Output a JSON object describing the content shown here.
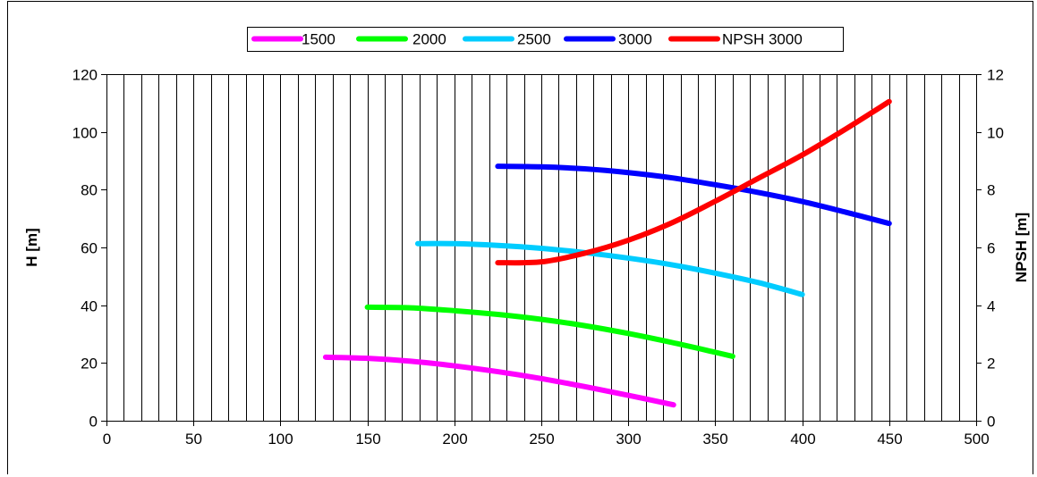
{
  "chart_data": {
    "type": "line",
    "title": "",
    "xlabel": "",
    "ylabel": "H [m]",
    "y2label": "NPSH [m]",
    "xlim": [
      0,
      500
    ],
    "ylim": [
      0,
      120
    ],
    "y2lim": [
      0,
      12
    ],
    "x_ticks": [
      0,
      50,
      100,
      150,
      200,
      250,
      300,
      350,
      400,
      450,
      500
    ],
    "y_ticks": [
      0,
      20,
      40,
      60,
      80,
      100,
      120
    ],
    "y2_ticks": [
      0,
      2,
      4,
      6,
      8,
      10,
      12
    ],
    "grid": "vertical lines every 10",
    "legend_position": "top",
    "series": [
      {
        "name": "1500",
        "axis": "left",
        "color": "#ff00ff",
        "x": [
          126,
          150,
          175,
          200,
          225,
          250,
          275,
          300,
          326
        ],
        "y": [
          22,
          21.6,
          20.6,
          19.0,
          17.0,
          14.6,
          11.8,
          8.8,
          5.5
        ]
      },
      {
        "name": "2000",
        "axis": "left",
        "color": "#00ff00",
        "x": [
          150,
          175,
          200,
          225,
          250,
          275,
          300,
          325,
          350,
          360
        ],
        "y": [
          39.3,
          39.1,
          38.1,
          36.8,
          35.1,
          32.9,
          30.2,
          27.1,
          23.7,
          22.3
        ]
      },
      {
        "name": "2500",
        "axis": "left",
        "color": "#00ccff",
        "x": [
          179,
          200,
          225,
          250,
          275,
          300,
          325,
          350,
          375,
          400
        ],
        "y": [
          61.3,
          61.3,
          60.7,
          59.7,
          58.2,
          56.3,
          54.0,
          51.1,
          47.8,
          43.7
        ]
      },
      {
        "name": "3000",
        "axis": "left",
        "color": "#0000ff",
        "x": [
          225,
          250,
          275,
          300,
          325,
          350,
          375,
          400,
          425,
          450
        ],
        "y": [
          88.1,
          87.9,
          87.2,
          85.9,
          84.1,
          81.7,
          79.0,
          75.9,
          72.2,
          68.3
        ]
      },
      {
        "name": "NPSH 3000",
        "axis": "right",
        "color": "#ff0000",
        "x": [
          225,
          250,
          275,
          300,
          325,
          350,
          375,
          400,
          425,
          450
        ],
        "y": [
          5.47,
          5.5,
          5.8,
          6.25,
          6.85,
          7.6,
          8.4,
          9.2,
          10.1,
          11.05
        ]
      }
    ]
  }
}
